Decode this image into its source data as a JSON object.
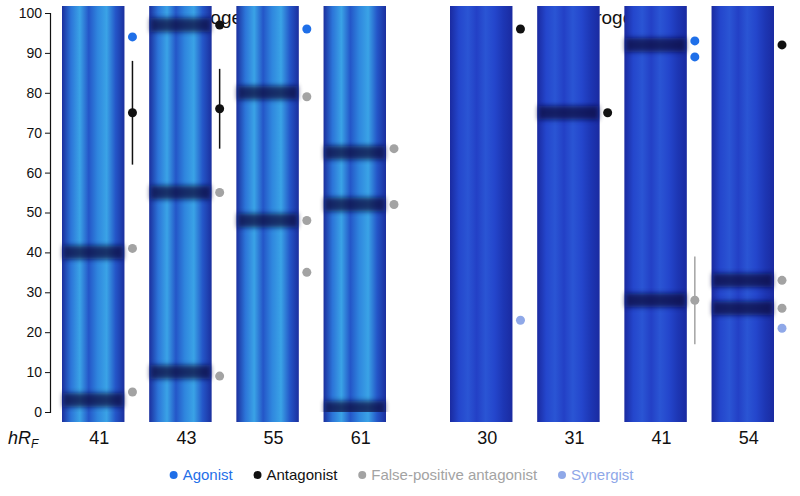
{
  "chart_data": {
    "type": "scatter",
    "panels": [
      {
        "title": "Estrogen-like",
        "categories": [
          "41",
          "43",
          "55",
          "61"
        ]
      },
      {
        "title": "Androgen-like",
        "categories": [
          "30",
          "31",
          "41",
          "54"
        ]
      }
    ],
    "y_label": "hRF",
    "ylim": [
      0,
      100
    ],
    "yticks": [
      0,
      10,
      20,
      30,
      40,
      50,
      60,
      70,
      80,
      90,
      100
    ],
    "legend": "bottom",
    "marker": "circle",
    "series": [
      {
        "name": "Agonist",
        "color": "#1f6fe8",
        "values": [
          [
            94
          ],
          [],
          [
            96
          ],
          [],
          [],
          [],
          [
            93,
            89
          ],
          []
        ]
      },
      {
        "name": "Antagonist",
        "color": "#111111",
        "values": [
          [
            75
          ],
          [
            97,
            76
          ],
          [],
          [],
          [
            96
          ],
          [
            75
          ],
          [],
          [
            92
          ]
        ],
        "errors": [
          [
            13
          ],
          [
            null,
            10
          ],
          [],
          [],
          [
            null
          ],
          [
            null
          ],
          [],
          [
            null
          ]
        ]
      },
      {
        "name": "False-positive antagonist",
        "color": "#a3a3a3",
        "values": [
          [
            41,
            5
          ],
          [
            55,
            9
          ],
          [
            79,
            48,
            35
          ],
          [
            66,
            52
          ],
          [],
          [],
          [
            28
          ],
          [
            33,
            26
          ]
        ],
        "errors": [
          [
            null,
            null
          ],
          [
            null,
            null
          ],
          [
            null,
            null,
            null
          ],
          [
            null,
            null
          ],
          [],
          [],
          [
            11
          ],
          [
            null,
            null
          ]
        ]
      },
      {
        "name": "Synergist",
        "color": "#8fa8e8",
        "values": [
          [],
          [],
          [],
          [],
          [
            23
          ],
          [],
          [],
          [
            21
          ]
        ]
      }
    ],
    "bands": [
      [
        40,
        3
      ],
      [
        97,
        55,
        10
      ],
      [
        80,
        48
      ],
      [
        65,
        52,
        1
      ],
      [],
      [
        75
      ],
      [
        92,
        28
      ],
      [
        33,
        26
      ]
    ]
  }
}
